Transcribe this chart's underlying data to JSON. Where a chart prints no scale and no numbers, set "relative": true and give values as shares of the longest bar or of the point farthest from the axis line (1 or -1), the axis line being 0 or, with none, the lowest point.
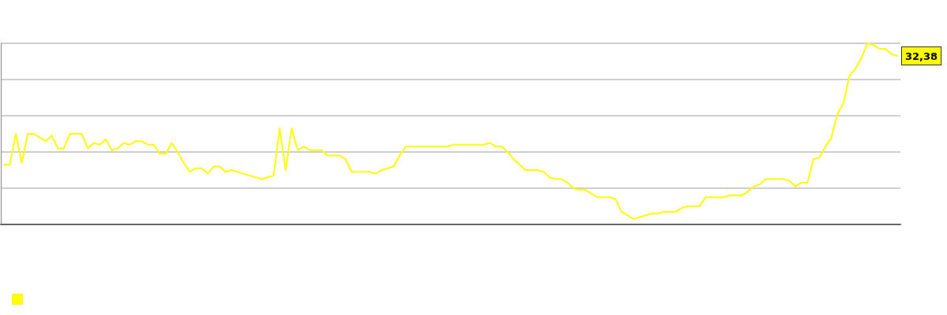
{
  "chart_data": {
    "type": "line",
    "relative": true,
    "categories": [
      null,
      null,
      null,
      null,
      null,
      null,
      null,
      null,
      null,
      null,
      null,
      null,
      null,
      null,
      null,
      null,
      null,
      null,
      null,
      null,
      null,
      null,
      null,
      null,
      null,
      null,
      null,
      null,
      null,
      null,
      null,
      null,
      null,
      null,
      null,
      null,
      null,
      null,
      null,
      null,
      null,
      null,
      null,
      null,
      null,
      null,
      null,
      null,
      null,
      null,
      null,
      null,
      null,
      null,
      null,
      null,
      null,
      null,
      null,
      null,
      null,
      null,
      null,
      null,
      null,
      null,
      null,
      null,
      null,
      null,
      null,
      null,
      null,
      null,
      null,
      null,
      null,
      null,
      null,
      null,
      null,
      null,
      null,
      null,
      null,
      null,
      null,
      null,
      null,
      null,
      null,
      null,
      null,
      null,
      null,
      null,
      null,
      null,
      null,
      null,
      null,
      null,
      null,
      null,
      null,
      null,
      null,
      null,
      null,
      null,
      null,
      null,
      null,
      null,
      null,
      null,
      null,
      null,
      null,
      null,
      null,
      null,
      null,
      null,
      null,
      null,
      null,
      null,
      null,
      null,
      null,
      null,
      null,
      null,
      null,
      null,
      null,
      null,
      null,
      null,
      null,
      null,
      null,
      null,
      null,
      null,
      null,
      null,
      null,
      null
    ],
    "series": [
      {
        "color": "#ffff00",
        "values": [
          0.33,
          0.33,
          0.5,
          0.34,
          0.5,
          0.5,
          0.48,
          0.46,
          0.49,
          0.42,
          0.42,
          0.5,
          0.5,
          0.5,
          0.42,
          0.45,
          0.44,
          0.47,
          0.41,
          0.42,
          0.45,
          0.44,
          0.46,
          0.46,
          0.44,
          0.44,
          0.39,
          0.39,
          0.45,
          0.4,
          0.34,
          0.29,
          0.31,
          0.31,
          0.28,
          0.32,
          0.32,
          0.29,
          0.3,
          0.29,
          0.28,
          0.27,
          0.26,
          0.25,
          0.26,
          0.27,
          0.53,
          0.3,
          0.53,
          0.41,
          0.43,
          0.41,
          0.41,
          0.41,
          0.38,
          0.38,
          0.38,
          0.36,
          0.29,
          0.29,
          0.29,
          0.29,
          0.28,
          0.3,
          0.31,
          0.32,
          0.38,
          0.43,
          0.43,
          0.43,
          0.43,
          0.43,
          0.43,
          0.43,
          0.43,
          0.44,
          0.44,
          0.44,
          0.44,
          0.44,
          0.44,
          0.45,
          0.43,
          0.43,
          0.4,
          0.36,
          0.33,
          0.3,
          0.3,
          0.3,
          0.29,
          0.26,
          0.25,
          0.25,
          0.23,
          0.2,
          0.19,
          0.19,
          0.17,
          0.15,
          0.15,
          0.15,
          0.14,
          0.07,
          0.05,
          0.03,
          0.04,
          0.05,
          0.06,
          0.06,
          0.07,
          0.07,
          0.07,
          0.09,
          0.1,
          0.1,
          0.1,
          0.15,
          0.15,
          0.15,
          0.15,
          0.16,
          0.16,
          0.16,
          0.18,
          0.21,
          0.22,
          0.25,
          0.25,
          0.25,
          0.25,
          0.24,
          0.21,
          0.23,
          0.23,
          0.36,
          0.37,
          0.43,
          0.48,
          0.61,
          0.67,
          0.82,
          0.86,
          0.92,
          1,
          0.99,
          0.97,
          0.97,
          0.94,
          0.93
        ]
      }
    ],
    "annotations": [
      "32,38"
    ],
    "grid": "y"
  }
}
